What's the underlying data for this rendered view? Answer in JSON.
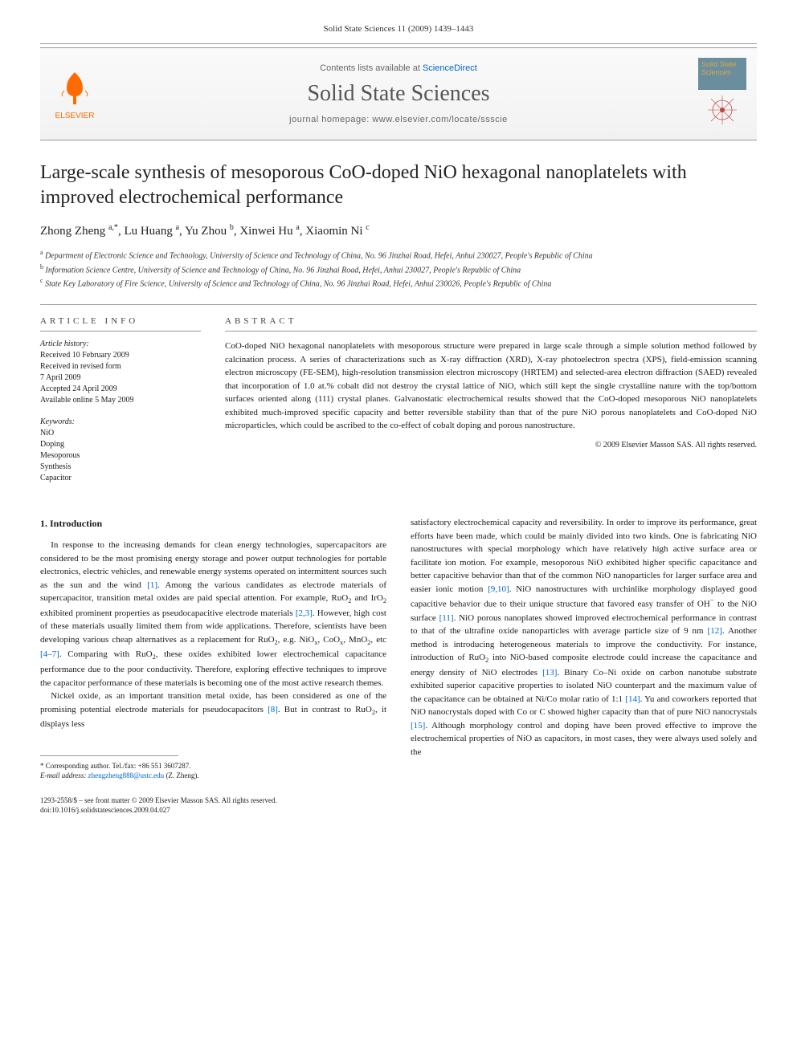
{
  "page_header": "Solid State Sciences 11 (2009) 1439–1443",
  "banner": {
    "contents_prefix": "Contents lists available at ",
    "contents_link": "ScienceDirect",
    "journal_name": "Solid State Sciences",
    "homepage_prefix": "journal homepage: ",
    "homepage_url": "www.elsevier.com/locate/ssscie",
    "publisher_name": "ELSEVIER",
    "cover_text": "Solid State Sciences"
  },
  "title": "Large-scale synthesis of mesoporous CoO-doped NiO hexagonal nanoplatelets with improved electrochemical performance",
  "authors_html": "Zhong Zheng <sup>a,*</sup>, Lu Huang <sup>a</sup>, Yu Zhou <sup>b</sup>, Xinwei Hu <sup>a</sup>, Xiaomin Ni <sup>c</sup>",
  "affiliations": [
    "<sup>a</sup> Department of Electronic Science and Technology, University of Science and Technology of China, No. 96 Jinzhai Road, Hefei, Anhui 230027, People's Republic of China",
    "<sup>b</sup> Information Science Centre, University of Science and Technology of China, No. 96 Jinzhai Road, Hefei, Anhui 230027, People's Republic of China",
    "<sup>c</sup> State Key Laboratory of Fire Science, University of Science and Technology of China, No. 96 Jinzhai Road, Hefei, Anhui 230026, People's Republic of China"
  ],
  "article_info": {
    "label": "ARTICLE INFO",
    "history_label": "Article history:",
    "history": [
      "Received 10 February 2009",
      "Received in revised form",
      "7 April 2009",
      "Accepted 24 April 2009",
      "Available online 5 May 2009"
    ],
    "keywords_label": "Keywords:",
    "keywords": [
      "NiO",
      "Doping",
      "Mesoporous",
      "Synthesis",
      "Capacitor"
    ]
  },
  "abstract": {
    "label": "ABSTRACT",
    "text": "CoO-doped NiO hexagonal nanoplatelets with mesoporous structure were prepared in large scale through a simple solution method followed by calcination process. A series of characterizations such as X-ray diffraction (XRD), X-ray photoelectron spectra (XPS), field-emission scanning electron microscopy (FE-SEM), high-resolution transmission electron microscopy (HRTEM) and selected-area electron diffraction (SAED) revealed that incorporation of 1.0 at.% cobalt did not destroy the crystal lattice of NiO, which still kept the single crystalline nature with the top/bottom surfaces oriented along (111) crystal planes. Galvanostatic electrochemical results showed that the CoO-doped mesoporous NiO nanoplatelets exhibited much-improved specific capacity and better reversible stability than that of the pure NiO porous nanoplatelets and CoO-doped NiO microparticles, which could be ascribed to the co-effect of cobalt doping and porous nanostructure.",
    "copyright": "© 2009 Elsevier Masson SAS. All rights reserved."
  },
  "body": {
    "section_heading": "1. Introduction",
    "left_paragraphs": [
      "In response to the increasing demands for clean energy technologies, supercapacitors are considered to be the most promising energy storage and power output technologies for portable electronics, electric vehicles, and renewable energy systems operated on intermittent sources such as the sun and the wind <span class=\"ref\">[1]</span>. Among the various candidates as electrode materials of supercapacitor, transition metal oxides are paid special attention. For example, RuO<sub>2</sub> and IrO<sub>2</sub> exhibited prominent properties as pseudocapacitive electrode materials <span class=\"ref\">[2,3]</span>. However, high cost of these materials usually limited them from wide applications. Therefore, scientists have been developing various cheap alternatives as a replacement for RuO<sub>2</sub>, e.g. NiO<sub>x</sub>, CoO<sub>x</sub>, MnO<sub>2</sub>, etc <span class=\"ref\">[4–7]</span>. Comparing with RuO<sub>2</sub>, these oxides exhibited lower electrochemical capacitance performance due to the poor conductivity. Therefore, exploring effective techniques to improve the capacitor performance of these materials is becoming one of the most active research themes.",
      "Nickel oxide, as an important transition metal oxide, has been considered as one of the promising potential electrode materials for pseudocapacitors <span class=\"ref\">[8]</span>. But in contrast to RuO<sub>2</sub>, it displays less"
    ],
    "right_paragraphs": [
      "satisfactory electrochemical capacity and reversibility. In order to improve its performance, great efforts have been made, which could be mainly divided into two kinds. One is fabricating NiO nanostructures with special morphology which have relatively high active surface area or facilitate ion motion. For example, mesoporous NiO exhibited higher specific capacitance and better capacitive behavior than that of the common NiO nanoparticles for larger surface area and easier ionic motion <span class=\"ref\">[9,10]</span>. NiO nanostructures with urchinlike morphology displayed good capacitive behavior due to their unique structure that favored easy transfer of OH<sup>−</sup> to the NiO surface <span class=\"ref\">[11]</span>. NiO porous nanoplates showed improved electrochemical performance in contrast to that of the ultrafine oxide nanoparticles with average particle size of 9 nm <span class=\"ref\">[12]</span>. Another method is introducing heterogeneous materials to improve the conductivity. For instance, introduction of RuO<sub>2</sub> into NiO-based composite electrode could increase the capacitance and energy density of NiO electrodes <span class=\"ref\">[13]</span>. Binary Co–Ni oxide on carbon nanotube substrate exhibited superior capacitive properties to isolated NiO counterpart and the maximum value of the capacitance can be obtained at Ni/Co molar ratio of 1:1 <span class=\"ref\">[14]</span>. Yu and coworkers reported that NiO nanocrystals doped with Co or C showed higher capacity than that of pure NiO nanocrystals <span class=\"ref\">[15]</span>. Although morphology control and doping have been proved effective to improve the electrochemical properties of NiO as capacitors, in most cases, they were always used solely and the"
    ]
  },
  "footnote": {
    "corresponding": "* Corresponding author. Tel./fax: +86 551 3607287.",
    "email_label": "E-mail address:",
    "email": "zhengzheng888@ustc.edu",
    "email_name": "(Z. Zheng)."
  },
  "footer": {
    "issn_line": "1293-2558/$ – see front matter © 2009 Elsevier Masson SAS. All rights reserved.",
    "doi_line": "doi:10.1016/j.solidstatesciences.2009.04.027"
  },
  "colors": {
    "link": "#0066cc",
    "elsevier_orange": "#ff6b00",
    "cover_bg": "#6b8e9e",
    "cover_text": "#d4a84b",
    "divider": "#999999"
  }
}
